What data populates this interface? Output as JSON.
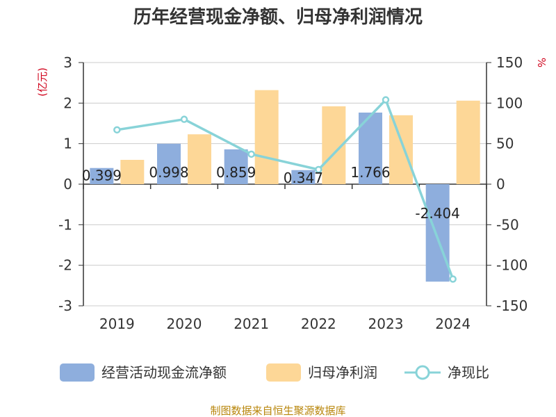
{
  "chart_data": {
    "type": "bar",
    "title": "历年经营现金净额、归母净利润情况",
    "categories": [
      "2019",
      "2020",
      "2021",
      "2022",
      "2023",
      "2024"
    ],
    "left_axis": {
      "unit": "(亿元)",
      "range": [
        -3,
        3
      ],
      "ticks": [
        "3",
        "2",
        "1",
        "0",
        "-1",
        "-2",
        "-3"
      ],
      "unit_color": "#d0021b"
    },
    "right_axis": {
      "unit": "%",
      "range": [
        -150,
        150
      ],
      "ticks": [
        "150",
        "100",
        "50",
        "0",
        "-50",
        "-100",
        "-150"
      ],
      "unit_color": "#d0021b"
    },
    "series": [
      {
        "name": "经营活动现金流净额",
        "kind": "bar",
        "axis": "left",
        "color": "#8eaedd",
        "values": [
          0.399,
          0.998,
          0.859,
          0.347,
          1.766,
          -2.404
        ],
        "labels": [
          "0.399",
          "0.998",
          "0.859",
          "0.347",
          "1.766",
          "-2.404"
        ]
      },
      {
        "name": "归母净利润",
        "kind": "bar",
        "axis": "left",
        "color": "#fdd797",
        "values": [
          0.6,
          1.23,
          2.32,
          1.92,
          1.7,
          2.06
        ]
      },
      {
        "name": "净现比",
        "kind": "line",
        "axis": "right",
        "color": "#88d3d8",
        "values": [
          67,
          80,
          37,
          18,
          104,
          -117
        ]
      }
    ],
    "grid": true,
    "legend_position": "bottom"
  },
  "source": "制图数据来自恒生聚源数据库"
}
